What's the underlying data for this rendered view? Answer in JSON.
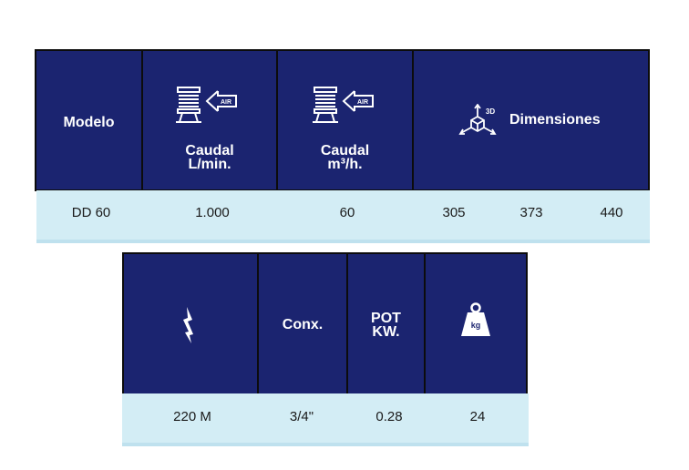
{
  "table1": {
    "headers": {
      "modelo": "Modelo",
      "caudal_min": [
        "Caudal",
        "L/min."
      ],
      "caudal_h": [
        "Caudal",
        "m³/h."
      ],
      "dimensiones": "Dimensiones"
    },
    "icons": {
      "air_label": "AIR",
      "dim_label": "3D"
    },
    "row": {
      "modelo": "DD 60",
      "caudal_min": "1.000",
      "caudal_h": "60",
      "dim1": "305",
      "dim2": "373",
      "dim3": "440"
    }
  },
  "table2": {
    "headers": {
      "conx": "Conx.",
      "pot": [
        "POT",
        "KW."
      ]
    },
    "icons": {
      "weight_label": "kg",
      "power_icon": "lightning-bolt-icon"
    },
    "row": {
      "power": "220 M",
      "conx": "3/4\"",
      "pot": "0.28",
      "weight": "24"
    }
  },
  "colors": {
    "header_bg": "#1b2470",
    "band_bg": "#d3edf5",
    "band_border": "#bfe1ee"
  }
}
